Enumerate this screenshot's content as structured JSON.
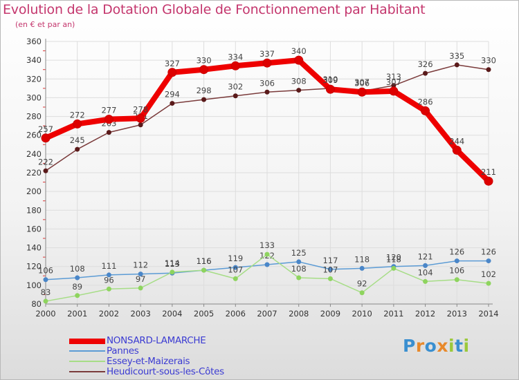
{
  "chart_data": {
    "type": "line",
    "title": "Evolution de la Dotation Globale de Fonctionnement par Habitant",
    "subtitle": "(en € et par an)",
    "xlabel": "",
    "ylabel": "",
    "categories": [
      "2000",
      "2001",
      "2002",
      "2003",
      "2004",
      "2005",
      "2006",
      "2007",
      "2008",
      "2009",
      "2010",
      "2011",
      "2012",
      "2013",
      "2014"
    ],
    "ylim": [
      80,
      360
    ],
    "yticks": [
      80,
      100,
      120,
      140,
      160,
      180,
      200,
      220,
      240,
      260,
      280,
      300,
      320,
      340,
      360
    ],
    "grid": true,
    "legend_position": "bottom-left",
    "series": [
      {
        "name": "NONSARD-LAMARCHE",
        "color": "#ee0000",
        "line_width": 8,
        "marker_radius": 6,
        "marker_color": "#dd0000",
        "values": [
          257,
          272,
          277,
          278,
          327,
          330,
          334,
          337,
          340,
          309,
          306,
          307,
          286,
          244,
          211
        ]
      },
      {
        "name": "Pannes",
        "color": "#5b9bd5",
        "line_width": 1.5,
        "marker_radius": 3.5,
        "marker_color": "#4a86c8",
        "values": [
          106,
          108,
          111,
          112,
          113,
          116,
          119,
          122,
          125,
          117,
          118,
          120,
          121,
          126,
          126
        ]
      },
      {
        "name": "Essey-et-Maizerais",
        "color": "#a6dd86",
        "line_width": 1.5,
        "marker_radius": 3.5,
        "marker_color": "#8ed45e",
        "values": [
          83,
          89,
          96,
          97,
          114,
          116,
          107,
          133,
          108,
          107,
          92,
          118,
          104,
          106,
          102
        ]
      },
      {
        "name": "Heudicourt-sous-les-Côtes",
        "color": "#7a3a3a",
        "line_width": 1.5,
        "marker_radius": 3.5,
        "marker_color": "#5a1a1a",
        "values": [
          222,
          245,
          263,
          271,
          294,
          298,
          302,
          306,
          308,
          310,
          307,
          313,
          326,
          335,
          330
        ]
      }
    ]
  },
  "logo": {
    "text": "Proxiti"
  }
}
